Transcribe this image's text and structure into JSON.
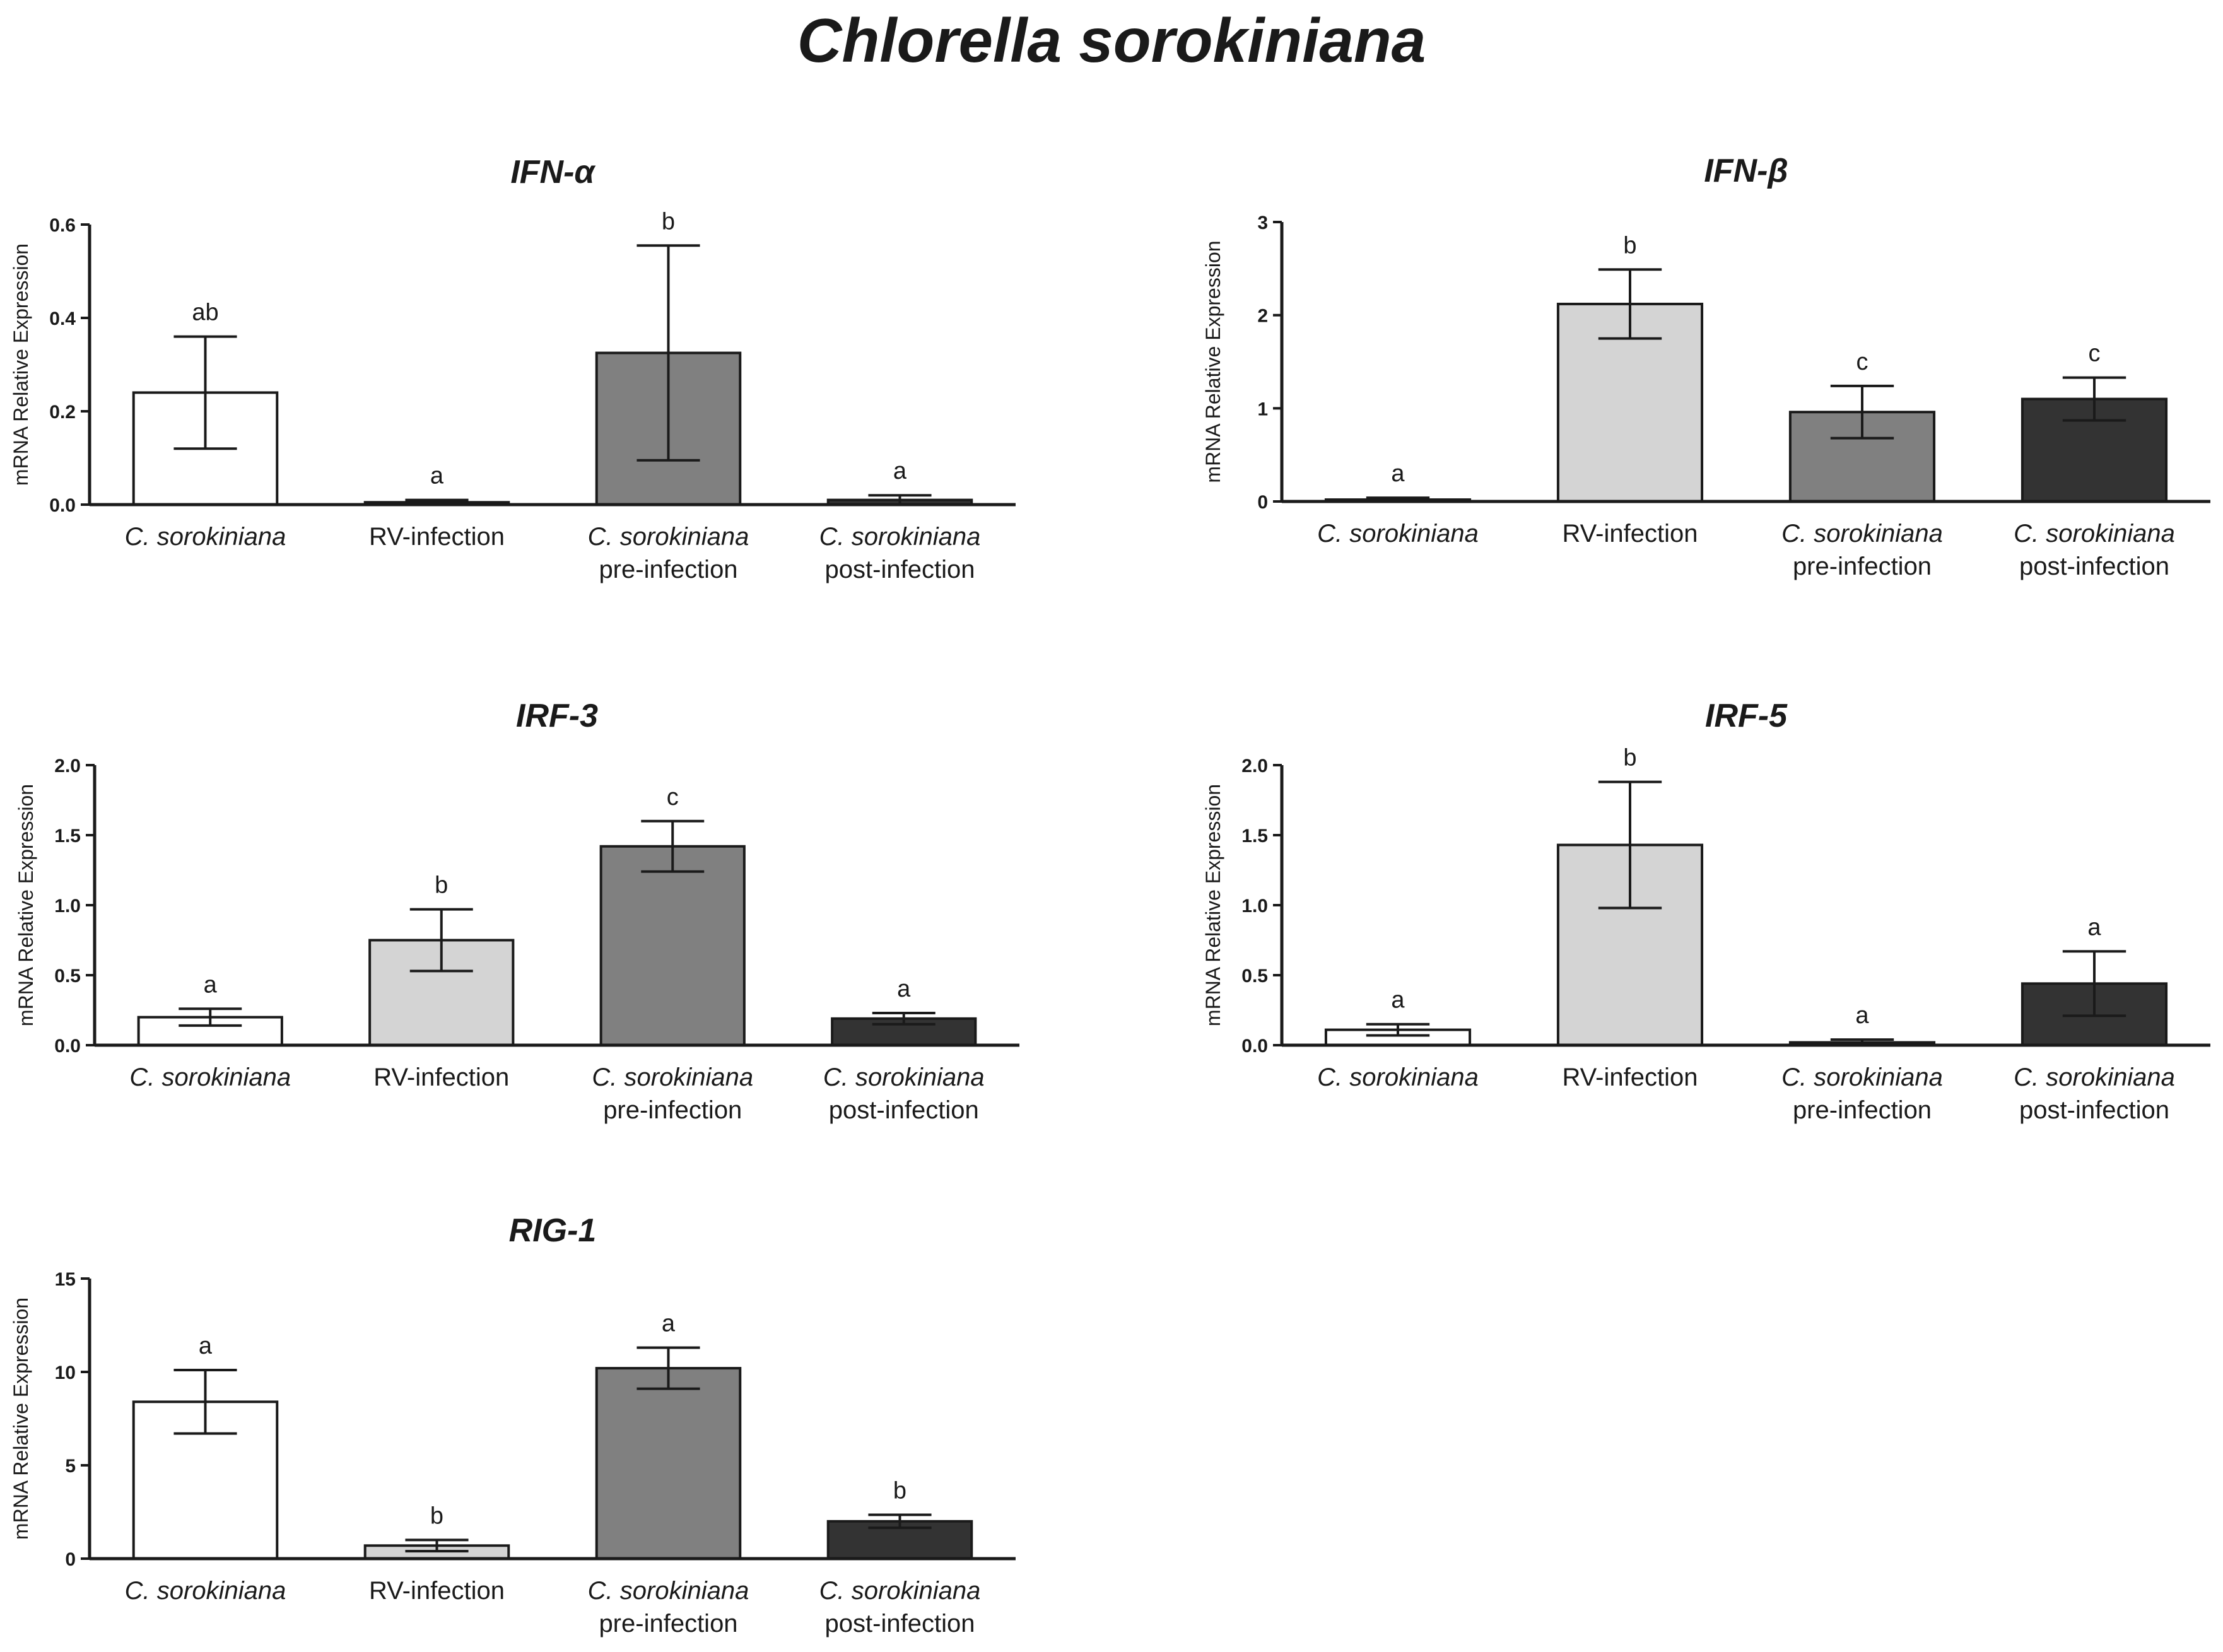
{
  "figure_title": "Chlorella sorokiniana",
  "colors": {
    "C. sorokiniana": "#ffffff",
    "RV-infection": "#d4d4d4",
    "C. sorokiniana pre-infection": "#808080",
    "C. sorokiniana post-infection": "#333333",
    "axis": "#1a1a1a"
  },
  "chart_data": [
    {
      "type": "bar",
      "title": "IFN-α",
      "ylabel": "mRNA Relative Expression",
      "ylim": [
        0,
        0.6
      ],
      "yticks": [
        "0.0",
        "0.2",
        "0.4",
        "0.6"
      ],
      "categories": [
        {
          "line1": "C. sorokiniana",
          "line1_italic": true,
          "line2": ""
        },
        {
          "line1": "RV-infection",
          "line1_italic": false,
          "line2": ""
        },
        {
          "line1": "C. sorokiniana",
          "line1_italic": true,
          "line2": "pre-infection"
        },
        {
          "line1": "C. sorokiniana",
          "line1_italic": true,
          "line2": "post-infection"
        }
      ],
      "values": [
        0.24,
        0.005,
        0.325,
        0.01
      ],
      "errors": [
        0.12,
        0.005,
        0.23,
        0.01
      ],
      "letters": [
        "ab",
        "a",
        "b",
        "a"
      ]
    },
    {
      "type": "bar",
      "title": "IFN-β",
      "ylabel": "mRNA Relative Expression",
      "ylim": [
        0,
        3
      ],
      "yticks": [
        "0",
        "1",
        "2",
        "3"
      ],
      "categories": [
        {
          "line1": "C. sorokiniana",
          "line1_italic": true,
          "line2": ""
        },
        {
          "line1": "RV-infection",
          "line1_italic": false,
          "line2": ""
        },
        {
          "line1": "C. sorokiniana",
          "line1_italic": true,
          "line2": "pre-infection"
        },
        {
          "line1": "C. sorokiniana",
          "line1_italic": true,
          "line2": "post-infection"
        }
      ],
      "values": [
        0.02,
        2.12,
        0.96,
        1.1
      ],
      "errors": [
        0.02,
        0.37,
        0.28,
        0.23
      ],
      "letters": [
        "a",
        "b",
        "c",
        "c"
      ]
    },
    {
      "type": "bar",
      "title": "IRF-3",
      "ylabel": "mRNA Relative Expression",
      "ylim": [
        0,
        2.0
      ],
      "yticks": [
        "0.0",
        "0.5",
        "1.0",
        "1.5",
        "2.0"
      ],
      "categories": [
        {
          "line1": "C. sorokiniana",
          "line1_italic": true,
          "line2": ""
        },
        {
          "line1": "RV-infection",
          "line1_italic": false,
          "line2": ""
        },
        {
          "line1": "C. sorokiniana",
          "line1_italic": true,
          "line2": "pre-infection"
        },
        {
          "line1": "C. sorokiniana",
          "line1_italic": true,
          "line2": "post-infection"
        }
      ],
      "values": [
        0.2,
        0.75,
        1.42,
        0.19
      ],
      "errors": [
        0.06,
        0.22,
        0.18,
        0.04
      ],
      "letters": [
        "a",
        "b",
        "c",
        "a"
      ]
    },
    {
      "type": "bar",
      "title": "IRF-5",
      "ylabel": "mRNA Relative Expression",
      "ylim": [
        0,
        2.0
      ],
      "yticks": [
        "0.0",
        "0.5",
        "1.0",
        "1.5",
        "2.0"
      ],
      "categories": [
        {
          "line1": "C. sorokiniana",
          "line1_italic": true,
          "line2": ""
        },
        {
          "line1": "RV-infection",
          "line1_italic": false,
          "line2": ""
        },
        {
          "line1": "C. sorokiniana",
          "line1_italic": true,
          "line2": "pre-infection"
        },
        {
          "line1": "C. sorokiniana",
          "line1_italic": true,
          "line2": "post-infection"
        }
      ],
      "values": [
        0.11,
        1.43,
        0.02,
        0.44
      ],
      "errors": [
        0.04,
        0.45,
        0.02,
        0.23
      ],
      "letters": [
        "a",
        "b",
        "a",
        "a"
      ]
    },
    {
      "type": "bar",
      "title": "RIG-1",
      "ylabel": "mRNA Relative Expression",
      "ylim": [
        0,
        15
      ],
      "yticks": [
        "0",
        "5",
        "10",
        "15"
      ],
      "categories": [
        {
          "line1": "C. sorokiniana",
          "line1_italic": true,
          "line2": ""
        },
        {
          "line1": "RV-infection",
          "line1_italic": false,
          "line2": ""
        },
        {
          "line1": "C. sorokiniana",
          "line1_italic": true,
          "line2": "pre-infection"
        },
        {
          "line1": "C. sorokiniana",
          "line1_italic": true,
          "line2": "post-infection"
        }
      ],
      "values": [
        8.4,
        0.7,
        10.2,
        2.0
      ],
      "errors": [
        1.7,
        0.3,
        1.1,
        0.35
      ],
      "letters": [
        "a",
        "b",
        "a",
        "b"
      ]
    }
  ]
}
